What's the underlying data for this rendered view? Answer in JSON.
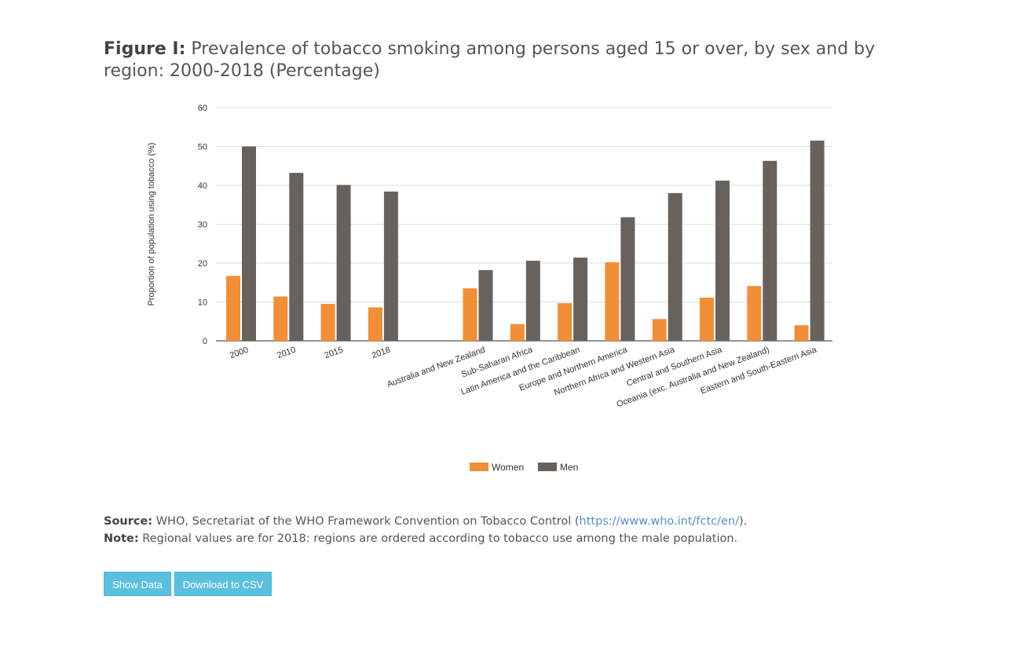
{
  "header": {
    "figure_label": "Figure I:",
    "title": " Prevalence of tobacco smoking among persons aged 15 or over, by sex and by region: 2000-2018 (Percentage)"
  },
  "notes": {
    "source_label": "Source:",
    "source_text": " WHO, Secretariat of the WHO Framework Convention on Tobacco Control (",
    "source_link": "https://www.who.int/fctc/en/",
    "source_end": ").",
    "note_label": "Note:",
    "note_text": " Regional values are for 2018: regions are ordered according to tobacco use among the male population."
  },
  "buttons": {
    "show_data": "Show Data",
    "download_csv": "Download to CSV"
  },
  "colors": {
    "women": "#f28e35",
    "men": "#67625e",
    "grid": "#dddddd",
    "axis": "#555555"
  },
  "chart_data": {
    "type": "bar",
    "title": "",
    "xlabel": "",
    "ylabel": "Proportion of population using tobacco (%)",
    "ylim": [
      0,
      60
    ],
    "yticks": [
      0,
      10,
      20,
      30,
      40,
      50,
      60
    ],
    "grid": true,
    "legend_position": "bottom-center",
    "categories": [
      "2000",
      "2010",
      "2015",
      "2018",
      "",
      "Australia and New Zealand",
      "Sub-Saharan Africa",
      "Latin America and the Caribbean",
      "Europe and Northern America",
      "Northern Africa and Western Asia",
      "Central and Southern Asia",
      "Oceania (exc. Australia and New Zealand)",
      "Eastern and South-Eastern Asia"
    ],
    "series": [
      {
        "name": "Women",
        "values": [
          16.7,
          11.4,
          9.5,
          8.6,
          null,
          13.5,
          4.3,
          9.7,
          20.2,
          5.6,
          11.1,
          14.1,
          4.0
        ]
      },
      {
        "name": "Men",
        "values": [
          50.0,
          43.2,
          40.1,
          38.4,
          null,
          18.2,
          20.6,
          21.4,
          31.8,
          38.0,
          41.2,
          46.3,
          51.5
        ]
      }
    ]
  }
}
